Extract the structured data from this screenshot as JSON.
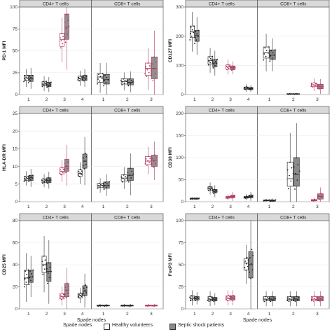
{
  "colors": {
    "healthy": "#ffffff",
    "septic": "#8a8a8a",
    "septic_highlight": "#b33a5e",
    "strip": "#d9d9d9",
    "grid": "#ebebeb",
    "box_edge": "#333333"
  },
  "legend": {
    "title": "Spade nodes",
    "healthy": "Healthy volunteers",
    "septic": "Septic shock patients"
  },
  "chart_data": [
    {
      "type": "box",
      "ylabel": "PD-1 MFI",
      "ylim": [
        0,
        100
      ],
      "yticks": [
        0,
        25,
        50,
        75,
        100
      ],
      "panels": [
        {
          "strip": "CD4+ T cells",
          "categories": [
            "1",
            "2",
            "3",
            "4"
          ],
          "healthy": [
            {
              "q1": 16,
              "med": 19,
              "q3": 22
            },
            {
              "q1": 10,
              "med": 12,
              "q3": 15
            },
            {
              "q1": 55,
              "med": 63,
              "q3": 70
            },
            {
              "q1": 16,
              "med": 18,
              "q3": 21
            }
          ],
          "septic": [
            {
              "q1": 15,
              "med": 18,
              "q3": 22
            },
            {
              "q1": 9,
              "med": 11,
              "q3": 14
            },
            {
              "q1": 63,
              "med": 77,
              "q3": 92
            },
            {
              "q1": 16,
              "med": 19,
              "q3": 22
            }
          ],
          "highlight": [
            2
          ]
        },
        {
          "strip": "CD8+ T cells",
          "categories": [
            "1",
            "2",
            "3"
          ],
          "healthy": [
            {
              "q1": 14,
              "med": 20,
              "q3": 24
            },
            {
              "q1": 12,
              "med": 15,
              "q3": 18
            },
            {
              "q1": 22,
              "med": 30,
              "q3": 36
            }
          ],
          "septic": [
            {
              "q1": 12,
              "med": 17,
              "q3": 23
            },
            {
              "q1": 11,
              "med": 14,
              "q3": 18
            },
            {
              "q1": 18,
              "med": 30,
              "q3": 43
            }
          ],
          "highlight": [
            2
          ]
        }
      ]
    },
    {
      "type": "box",
      "ylabel": "CD127 MFI",
      "ylim": [
        0,
        300
      ],
      "yticks": [
        0,
        100,
        200,
        300
      ],
      "panels": [
        {
          "strip": "CD4+ T cells",
          "categories": [
            "1",
            "2",
            "3",
            "4"
          ],
          "healthy": [
            {
              "q1": 195,
              "med": 215,
              "q3": 235
            },
            {
              "q1": 105,
              "med": 117,
              "q3": 130
            },
            {
              "q1": 87,
              "med": 95,
              "q3": 102
            },
            {
              "q1": 18,
              "med": 22,
              "q3": 26
            }
          ],
          "septic": [
            {
              "q1": 182,
              "med": 202,
              "q3": 220
            },
            {
              "q1": 95,
              "med": 108,
              "q3": 120
            },
            {
              "q1": 85,
              "med": 92,
              "q3": 98
            },
            {
              "q1": 17,
              "med": 20,
              "q3": 24
            }
          ],
          "highlight": [
            2
          ]
        },
        {
          "strip": "CD8+ T cells",
          "categories": [
            "1",
            "2",
            "3"
          ],
          "healthy": [
            {
              "q1": 125,
              "med": 143,
              "q3": 163
            },
            {
              "q1": 1,
              "med": 2,
              "q3": 3
            },
            {
              "q1": 27,
              "med": 33,
              "q3": 40
            }
          ],
          "septic": [
            {
              "q1": 120,
              "med": 135,
              "q3": 153
            },
            {
              "q1": 1,
              "med": 2,
              "q3": 3
            },
            {
              "q1": 20,
              "med": 27,
              "q3": 35
            }
          ],
          "highlight": [
            2
          ]
        }
      ]
    },
    {
      "type": "box",
      "ylabel": "HLA-DR MFI",
      "ylim": [
        0,
        25
      ],
      "yticks": [
        0,
        5,
        10,
        15,
        20,
        25
      ],
      "panels": [
        {
          "strip": "CD4+ T cells",
          "categories": [
            "1",
            "2",
            "3",
            "4"
          ],
          "healthy": [
            {
              "q1": 6,
              "med": 6.5,
              "q3": 7.2
            },
            {
              "q1": 5.4,
              "med": 5.9,
              "q3": 6.5
            },
            {
              "q1": 7.8,
              "med": 8.6,
              "q3": 9.6
            },
            {
              "q1": 7.2,
              "med": 8,
              "q3": 9
            }
          ],
          "septic": [
            {
              "q1": 6,
              "med": 6.8,
              "q3": 7.5
            },
            {
              "q1": 5.4,
              "med": 6.1,
              "q3": 6.8
            },
            {
              "q1": 8.6,
              "med": 10,
              "q3": 12
            },
            {
              "q1": 9.5,
              "med": 11.5,
              "q3": 13.5
            }
          ],
          "highlight": [
            2
          ]
        },
        {
          "strip": "CD8+ T cells",
          "categories": [
            "1",
            "2",
            "3"
          ],
          "healthy": [
            {
              "q1": 4,
              "med": 4.6,
              "q3": 5.2
            },
            {
              "q1": 5.8,
              "med": 6.7,
              "q3": 7.6
            },
            {
              "q1": 10.5,
              "med": 11.5,
              "q3": 12.8
            }
          ],
          "septic": [
            {
              "q1": 3.8,
              "med": 4.6,
              "q3": 5.6
            },
            {
              "q1": 6,
              "med": 7.5,
              "q3": 9.5
            },
            {
              "q1": 10,
              "med": 11.8,
              "q3": 13.2
            }
          ],
          "highlight": [
            2
          ]
        }
      ]
    },
    {
      "type": "box",
      "ylabel": "CD38 MFI",
      "ylim": [
        0,
        200
      ],
      "yticks": [
        0,
        50,
        100,
        150,
        200
      ],
      "panels": [
        {
          "strip": "CD4+ T cells",
          "categories": [
            "1",
            "2",
            "3",
            "4"
          ],
          "healthy": [
            {
              "q1": 6,
              "med": 7,
              "q3": 8
            },
            {
              "q1": 26,
              "med": 30,
              "q3": 34
            },
            {
              "q1": 8,
              "med": 10,
              "q3": 12
            },
            {
              "q1": 8,
              "med": 10,
              "q3": 12
            }
          ],
          "septic": [
            {
              "q1": 6,
              "med": 7,
              "q3": 8
            },
            {
              "q1": 20,
              "med": 24,
              "q3": 28
            },
            {
              "q1": 9,
              "med": 12,
              "q3": 15
            },
            {
              "q1": 9,
              "med": 12,
              "q3": 15
            }
          ],
          "highlight": [
            2
          ]
        },
        {
          "strip": "CD8+ T cells",
          "categories": [
            "1",
            "2",
            "3"
          ],
          "healthy": [
            {
              "q1": 2,
              "med": 3,
              "q3": 4
            },
            {
              "q1": 35,
              "med": 52,
              "q3": 90
            },
            {
              "q1": 2,
              "med": 3,
              "q3": 5
            }
          ],
          "septic": [
            {
              "q1": 1,
              "med": 2,
              "q3": 4
            },
            {
              "q1": 35,
              "med": 62,
              "q3": 100
            },
            {
              "q1": 6,
              "med": 12,
              "q3": 18
            }
          ],
          "highlight": [
            2
          ]
        }
      ]
    },
    {
      "type": "box",
      "ylabel": "CD25 MFI",
      "ylim": [
        0,
        80
      ],
      "yticks": [
        0,
        20,
        40,
        60,
        80
      ],
      "panels": [
        {
          "strip": "CD4+ T cells",
          "categories": [
            "1",
            "2",
            "3",
            "4"
          ],
          "healthy": [
            {
              "q1": 22,
              "med": 28,
              "q3": 35
            },
            {
              "q1": 33,
              "med": 40,
              "q3": 48
            },
            {
              "q1": 9,
              "med": 11,
              "q3": 14
            },
            {
              "q1": 10,
              "med": 12,
              "q3": 14
            }
          ],
          "septic": [
            {
              "q1": 24,
              "med": 29,
              "q3": 35
            },
            {
              "q1": 25,
              "med": 34,
              "q3": 42
            },
            {
              "q1": 11,
              "med": 17,
              "q3": 23
            },
            {
              "q1": 12,
              "med": 16,
              "q3": 21
            }
          ],
          "highlight": [
            2
          ]
        },
        {
          "strip": "CD8+ T cells",
          "categories": [
            "1",
            "2",
            "3"
          ],
          "healthy": [
            {
              "q1": 2.6,
              "med": 3,
              "q3": 3.4
            },
            {
              "q1": 2.6,
              "med": 3,
              "q3": 3.4
            },
            {
              "q1": 2.6,
              "med": 3,
              "q3": 3.4
            }
          ],
          "septic": [
            {
              "q1": 2.6,
              "med": 3,
              "q3": 3.4
            },
            {
              "q1": 2.6,
              "med": 3,
              "q3": 3.4
            },
            {
              "q1": 2.6,
              "med": 3,
              "q3": 3.4
            }
          ],
          "highlight": [
            2
          ]
        }
      ]
    },
    {
      "type": "box",
      "ylabel": "FoxP3 MFI",
      "ylim": [
        0,
        100
      ],
      "yticks": [
        0,
        25,
        50,
        75,
        100
      ],
      "panels": [
        {
          "strip": "CD4+ T cells",
          "categories": [
            "1",
            "2",
            "3",
            "4"
          ],
          "healthy": [
            {
              "q1": 10,
              "med": 12,
              "q3": 15
            },
            {
              "q1": 9,
              "med": 11,
              "q3": 14
            },
            {
              "q1": 10,
              "med": 12,
              "q3": 15
            },
            {
              "q1": 44,
              "med": 52,
              "q3": 57
            }
          ],
          "septic": [
            {
              "q1": 10,
              "med": 12,
              "q3": 14
            },
            {
              "q1": 9,
              "med": 11,
              "q3": 13
            },
            {
              "q1": 10,
              "med": 12,
              "q3": 15
            },
            {
              "q1": 35,
              "med": 50,
              "q3": 65
            }
          ],
          "highlight": [
            2
          ]
        },
        {
          "strip": "CD8+ T cells",
          "categories": [
            "1",
            "2",
            "3"
          ],
          "healthy": [
            {
              "q1": 9,
              "med": 11,
              "q3": 14
            },
            {
              "q1": 9,
              "med": 11,
              "q3": 14
            },
            {
              "q1": 9,
              "med": 11,
              "q3": 14
            }
          ],
          "septic": [
            {
              "q1": 9,
              "med": 11,
              "q3": 14
            },
            {
              "q1": 9,
              "med": 11,
              "q3": 14
            },
            {
              "q1": 9,
              "med": 11,
              "q3": 14
            }
          ],
          "highlight": [
            2
          ]
        }
      ]
    }
  ]
}
